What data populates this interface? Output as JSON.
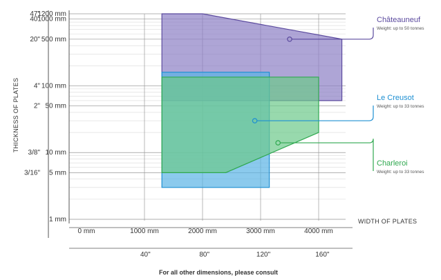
{
  "chart_data": {
    "type": "area",
    "x_axis": {
      "label": "WIDTH OF PLATES",
      "unit": "mm",
      "range": [
        0,
        5000
      ],
      "ticks": [
        {
          "value": 0,
          "label": "0 mm"
        },
        {
          "value": 1000,
          "label": "1000 mm"
        },
        {
          "value": 2000,
          "label": "2000 mm"
        },
        {
          "value": 3000,
          "label": "3000 mm"
        },
        {
          "value": 4000,
          "label": "4000 mm"
        }
      ],
      "inch_ticks": [
        {
          "value": 1016,
          "label": "40\""
        },
        {
          "value": 2032,
          "label": "80\""
        },
        {
          "value": 3048,
          "label": "120\""
        },
        {
          "value": 4064,
          "label": "160\""
        }
      ]
    },
    "y_axis": {
      "label": "THICKNESS OF PLATES",
      "scale": "log",
      "unit": "mm",
      "range": [
        1,
        1200
      ],
      "ticks": [
        {
          "value": 1200,
          "label": "1200 mm"
        },
        {
          "value": 1000,
          "label": "1000 mm"
        },
        {
          "value": 500,
          "label": "500 mm"
        },
        {
          "value": 100,
          "label": "100 mm"
        },
        {
          "value": 50,
          "label": "50 mm"
        },
        {
          "value": 10,
          "label": "10 mm"
        },
        {
          "value": 5,
          "label": "5 mm"
        },
        {
          "value": 1,
          "label": "1 mm"
        }
      ],
      "inch_ticks": [
        {
          "value": 1200,
          "label": "47\""
        },
        {
          "value": 1000,
          "label": "40\""
        },
        {
          "value": 500,
          "label": "20\""
        },
        {
          "value": 100,
          "label": "4\""
        },
        {
          "value": 50,
          "label": "2\""
        },
        {
          "value": 10,
          "label": "3/8\""
        },
        {
          "value": 5,
          "label": "3/16\""
        }
      ]
    },
    "grid": true,
    "series": [
      {
        "name": "Châteauneuf",
        "note": "Weight: up to 50 tonnes",
        "color": "#5b4a9e",
        "fill": "#8b7fc4",
        "points": [
          [
            1300,
            1200
          ],
          [
            2000,
            1200
          ],
          [
            4400,
            500
          ],
          [
            4400,
            60
          ],
          [
            1300,
            60
          ]
        ]
      },
      {
        "name": "Le Creusot",
        "note": "Weight: up to 33 tonnes",
        "color": "#1d8fd2",
        "fill": "#5ab4e6",
        "points": [
          [
            1300,
            160
          ],
          [
            3150,
            160
          ],
          [
            3150,
            3
          ],
          [
            1600,
            3
          ],
          [
            1300,
            3
          ]
        ]
      },
      {
        "name": "Charleroi",
        "note": "Weight: up to 33 tonnes",
        "color": "#2fa84f",
        "fill": "#6cc98a",
        "points": [
          [
            1300,
            135
          ],
          [
            4000,
            135
          ],
          [
            4000,
            20
          ],
          [
            2400,
            5
          ],
          [
            1300,
            5
          ]
        ]
      }
    ],
    "annotation": "For all other dimensions, please consult"
  }
}
